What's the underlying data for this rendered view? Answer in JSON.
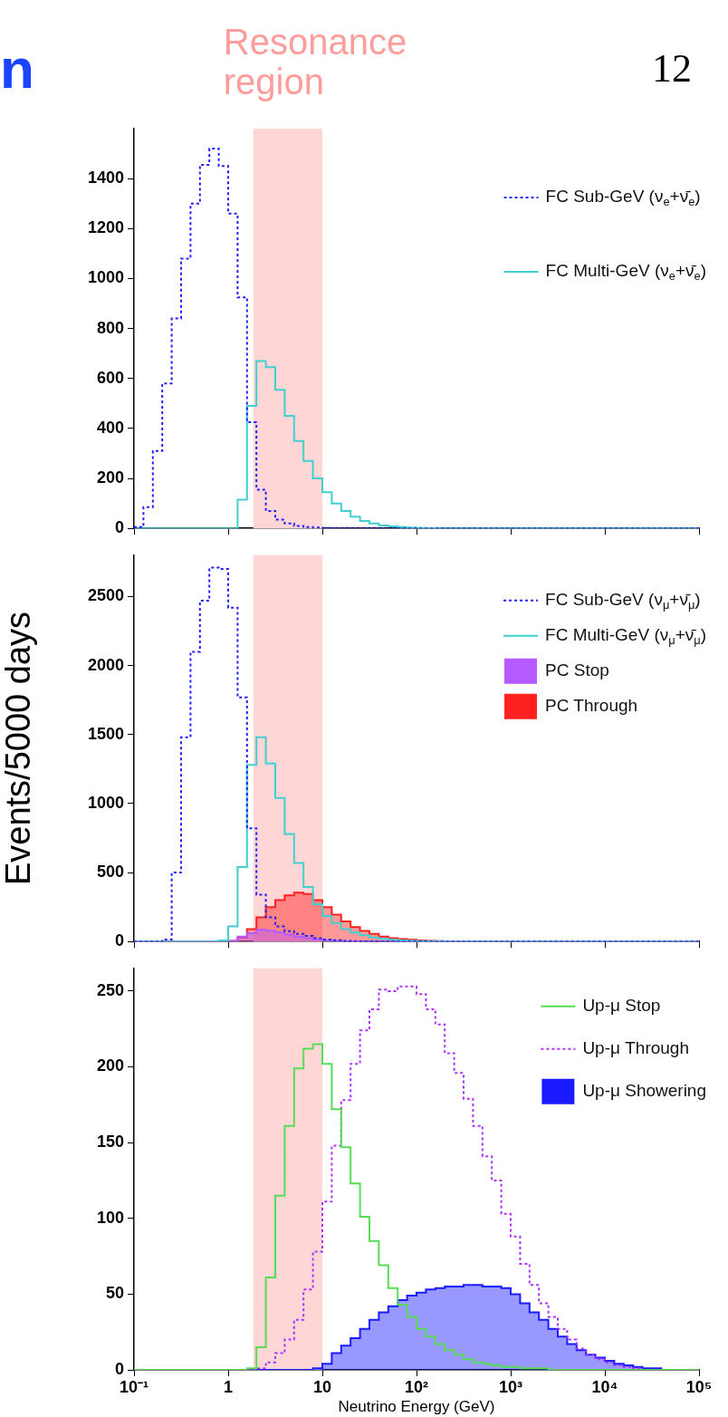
{
  "chart_data": [
    {
      "type": "histogram",
      "log": "x",
      "annotations": [
        "n",
        "12"
      ],
      "bins": [
        0.1,
        0.1259,
        0.1585,
        0.1995,
        0.2512,
        0.3162,
        0.3981,
        0.5012,
        0.631,
        0.7943,
        1,
        1.259,
        1.585,
        1.995,
        2.512,
        3.162,
        3.981,
        5.012,
        6.31,
        7.943,
        10,
        12.59,
        15.85,
        19.95,
        25.12,
        31.62,
        39.81,
        50.12,
        63.1,
        79.43,
        100,
        125.9,
        158.5,
        199.5,
        251.2,
        316.2,
        398.1,
        501.2,
        631,
        794.3,
        1000,
        1259,
        1585,
        1995,
        2512,
        3162,
        3981,
        5012,
        6310,
        7943,
        10000,
        12590,
        15850,
        19950,
        25120,
        31620,
        39810,
        50120,
        63100,
        79430,
        100000
      ],
      "series": [
        {
          "name": "FC Sub-GeV (ν$_{e}$+ν̄$_{e}$)",
          "line_style": "dotted",
          "color": "#2020ff",
          "values": [
            5,
            85,
            310,
            580,
            840,
            1080,
            1300,
            1455,
            1520,
            1450,
            1260,
            925,
            425,
            155,
            70,
            35,
            20,
            10,
            5,
            3,
            2,
            1,
            0,
            0,
            0,
            0,
            0,
            0,
            0,
            0,
            0,
            0,
            0,
            0,
            0,
            0,
            0,
            0,
            0,
            0,
            0,
            0,
            0,
            0,
            0,
            0,
            0,
            0,
            0,
            0,
            0,
            0,
            0,
            0,
            0,
            0,
            0,
            0,
            0,
            0
          ]
        },
        {
          "name": "FC Multi-GeV (ν$_{e}$+ν̄$_{e}$)",
          "line_style": "solid",
          "color": "#40d0d0",
          "values": [
            0,
            0,
            0,
            0,
            0,
            0,
            0,
            0,
            0,
            0,
            0,
            115,
            490,
            670,
            645,
            555,
            450,
            350,
            270,
            200,
            145,
            100,
            70,
            47,
            30,
            20,
            12,
            8,
            5,
            3,
            2,
            1,
            0,
            0,
            0,
            0,
            0,
            0,
            0,
            0,
            0,
            0,
            0,
            0,
            0,
            0,
            0,
            0,
            0,
            0,
            0,
            0,
            0,
            0,
            0,
            0,
            0,
            0,
            0,
            0
          ]
        }
      ],
      "bands": [
        {
          "axis": "x",
          "from": 1.85,
          "to": 10,
          "color": "#ffd6d6",
          "label": "Resonance region"
        }
      ],
      "xlim": [
        0.1,
        100000
      ],
      "xticks": [
        0.1,
        1,
        10,
        100,
        1000,
        10000,
        100000
      ],
      "ylim": [
        0,
        1600
      ],
      "yticks": [
        0,
        200,
        400,
        600,
        800,
        1000,
        1200,
        1400
      ],
      "tick_labels": "y",
      "legend": "top right"
    },
    {
      "type": "histogram",
      "log": "x",
      "ylabel": "Events/5000 days",
      "bins": [
        0.1,
        0.1259,
        0.1585,
        0.1995,
        0.2512,
        0.3162,
        0.3981,
        0.5012,
        0.631,
        0.7943,
        1,
        1.259,
        1.585,
        1.995,
        2.512,
        3.162,
        3.981,
        5.012,
        6.31,
        7.943,
        10,
        12.59,
        15.85,
        19.95,
        25.12,
        31.62,
        39.81,
        50.12,
        63.1,
        79.43,
        100,
        125.9,
        158.5,
        199.5,
        251.2,
        316.2,
        398.1,
        501.2,
        631,
        794.3,
        1000,
        1259,
        1585,
        1995,
        2512,
        3162,
        3981,
        5012,
        6310,
        7943,
        10000,
        12590,
        15850,
        19950,
        25120,
        31620,
        39810,
        50120,
        63100,
        79430,
        100000
      ],
      "series": [
        {
          "name": "FC Sub-GeV (ν$_{μ}$+ν̄$_{μ}$)",
          "line_style": "dotted",
          "color": "#2020ff",
          "values": [
            0,
            0,
            0,
            15,
            500,
            1480,
            2100,
            2470,
            2710,
            2700,
            2420,
            1770,
            820,
            340,
            175,
            110,
            75,
            55,
            40,
            25,
            15,
            10,
            5,
            3,
            2,
            1,
            0,
            0,
            0,
            0,
            0,
            0,
            0,
            0,
            0,
            0,
            0,
            0,
            0,
            0,
            0,
            0,
            0,
            0,
            0,
            0,
            0,
            0,
            0,
            0,
            0,
            0,
            0,
            0,
            0,
            0,
            0,
            0,
            0,
            0
          ]
        },
        {
          "name": "FC Multi-GeV (ν$_{μ}$+ν̄$_{μ}$)",
          "line_style": "solid",
          "color": "#40d0d0",
          "values": [
            0,
            0,
            0,
            0,
            0,
            0,
            0,
            0,
            0,
            8,
            110,
            540,
            1280,
            1480,
            1290,
            1040,
            780,
            570,
            395,
            270,
            185,
            135,
            90,
            65,
            45,
            30,
            20,
            12,
            8,
            5,
            3,
            2,
            1,
            0,
            0,
            0,
            0,
            0,
            0,
            0,
            0,
            0,
            0,
            0,
            0,
            0,
            0,
            0,
            0,
            0,
            0,
            0,
            0,
            0,
            0,
            0,
            0,
            0,
            0,
            0
          ]
        },
        {
          "name": "PC Stop",
          "color": "#b45aff",
          "values": [
            0,
            0,
            0,
            0,
            0,
            0,
            0,
            0,
            0,
            0,
            5,
            35,
            60,
            85,
            78,
            67,
            50,
            35,
            25,
            15,
            8,
            4,
            2,
            1,
            0,
            0,
            0,
            0,
            0,
            0,
            0,
            0,
            0,
            0,
            0,
            0,
            0,
            0,
            0,
            0,
            0,
            0,
            0,
            0,
            0,
            0,
            0,
            0,
            0,
            0,
            0,
            0,
            0,
            0,
            0,
            0,
            0,
            0,
            0,
            0
          ]
        },
        {
          "name": "PC Through",
          "color": "#ff2020",
          "values": [
            0,
            0,
            0,
            0,
            0,
            0,
            0,
            0,
            0,
            0,
            4,
            30,
            90,
            175,
            250,
            300,
            335,
            355,
            345,
            300,
            250,
            195,
            145,
            105,
            77,
            55,
            35,
            25,
            18,
            12,
            8,
            5,
            3,
            2,
            1,
            0,
            0,
            0,
            0,
            0,
            0,
            0,
            0,
            0,
            0,
            0,
            0,
            0,
            0,
            0,
            0,
            0,
            0,
            0,
            0,
            0,
            0,
            0,
            0,
            0
          ]
        }
      ],
      "bands": [
        {
          "axis": "x",
          "from": 1.85,
          "to": 10,
          "color": "#ffd6d6"
        }
      ],
      "xlim": [
        0.1,
        100000
      ],
      "xticks": [
        0.1,
        1,
        10,
        100,
        1000,
        10000,
        100000
      ],
      "ylim": [
        0,
        2800
      ],
      "yticks": [
        0,
        500,
        1000,
        1500,
        2000,
        2500
      ],
      "tick_labels": "y",
      "legend": "top right"
    },
    {
      "type": "histogram",
      "log": "x",
      "xlabel": "Neutrino Energy (GeV)",
      "bins": [
        0.1,
        0.1259,
        0.1585,
        0.1995,
        0.2512,
        0.3162,
        0.3981,
        0.5012,
        0.631,
        0.7943,
        1,
        1.259,
        1.585,
        1.995,
        2.512,
        3.162,
        3.981,
        5.012,
        6.31,
        7.943,
        10,
        12.59,
        15.85,
        19.95,
        25.12,
        31.62,
        39.81,
        50.12,
        63.1,
        79.43,
        100,
        125.9,
        158.5,
        199.5,
        251.2,
        316.2,
        398.1,
        501.2,
        631,
        794.3,
        1000,
        1259,
        1585,
        1995,
        2512,
        3162,
        3981,
        5012,
        6310,
        7943,
        10000,
        12590,
        15850,
        19950,
        25120,
        31620,
        39810,
        50120,
        63100,
        79430,
        100000
      ],
      "series": [
        {
          "name": "Up-μ Stop",
          "line_style": "solid",
          "color": "#55dd55",
          "values": [
            0,
            0,
            0,
            0,
            0,
            0,
            0,
            0,
            0,
            0,
            0,
            0,
            1,
            15,
            61,
            115,
            161,
            199,
            212,
            215,
            202,
            172,
            147,
            123,
            101,
            85,
            69,
            54,
            43,
            35,
            27,
            22,
            17,
            13,
            10,
            7,
            5,
            4,
            3,
            2,
            2,
            1,
            1,
            1,
            0,
            0,
            0,
            0,
            0,
            0,
            0,
            0,
            0,
            0,
            0,
            0,
            0,
            0,
            0,
            0
          ]
        },
        {
          "name": "Up-μ Through",
          "line_style": "dotted",
          "color": "#aa33ff",
          "values": [
            0,
            0,
            0,
            0,
            0,
            0,
            0,
            0,
            0,
            0,
            0,
            0,
            0,
            1,
            5,
            11,
            20,
            33,
            53,
            78,
            111,
            148,
            178,
            202,
            224,
            238,
            251,
            250,
            253,
            253,
            248,
            238,
            228,
            209,
            196,
            179,
            161,
            141,
            125,
            103,
            88,
            70,
            56,
            44,
            35,
            27,
            20,
            14,
            10,
            7,
            5,
            3,
            2,
            1,
            0,
            0,
            0,
            0,
            0,
            0
          ]
        },
        {
          "name": "Up-μ Showering",
          "color": "#1a1aff",
          "values": [
            0,
            0,
            0,
            0,
            0,
            0,
            0,
            0,
            0,
            0,
            0,
            0,
            0,
            0,
            0,
            0,
            0,
            0,
            0,
            1,
            4,
            11,
            16,
            21,
            27,
            33,
            38,
            42,
            46,
            49,
            51,
            53,
            54,
            55,
            55,
            56,
            56,
            55,
            55,
            54,
            50,
            44,
            38,
            33,
            27,
            22,
            17,
            13,
            10,
            8,
            6,
            4,
            3,
            2,
            1,
            1,
            0,
            0,
            0,
            0
          ]
        }
      ],
      "bands": [
        {
          "axis": "x",
          "from": 1.85,
          "to": 10,
          "color": "#ffd6d6"
        }
      ],
      "xlim": [
        0.1,
        100000
      ],
      "xticks": [
        {
          "value": 0.1,
          "label": "10⁻¹"
        },
        {
          "value": 1,
          "label": "1"
        },
        {
          "value": 10,
          "label": "10"
        },
        {
          "value": 100,
          "label": "10²"
        },
        {
          "value": 1000,
          "label": "10³"
        },
        {
          "value": 10000,
          "label": "10⁴"
        },
        {
          "value": 100000,
          "label": "10⁵"
        }
      ],
      "ylim": [
        0,
        265
      ],
      "yticks": [
        0,
        50,
        100,
        150,
        200,
        250
      ],
      "legend": "top right"
    }
  ]
}
